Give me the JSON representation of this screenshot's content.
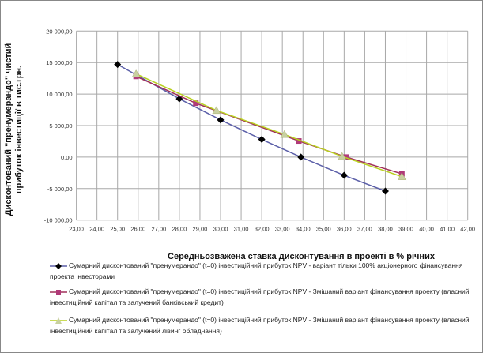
{
  "chart_data": {
    "type": "line",
    "ylabel": "Дисконтований \"пренумерандо\" чистий прибуток інвестиції в тис.грн.",
    "xlabel": "Середньозважена ставка дисконтування в проекті в % річних",
    "xlim": [
      23,
      42
    ],
    "ylim": [
      -10000,
      20000
    ],
    "xticks": [
      "23,00",
      "24,00",
      "25,00",
      "26,00",
      "27,00",
      "28,00",
      "29,00",
      "30,00",
      "31,00",
      "32,00",
      "33,00",
      "34,00",
      "35,00",
      "36,00",
      "37,00",
      "38,00",
      "39,00",
      "40,00",
      "41,00",
      "42,00"
    ],
    "yticks": [
      "-10 000,00",
      "-5 000,00",
      "0,00",
      "5 000,00",
      "10 000,00",
      "15 000,00",
      "20 000,00"
    ],
    "grid": true,
    "legend_position": "bottom",
    "series": [
      {
        "name": "Сумарний дисконтований \"пренумерандо\" (t=0) інвестиційний прибуток NPV  - варіант тільки 100% акціонерного фінансування проекта інвесторами",
        "color": "#5b5fa8",
        "marker": "diamond",
        "marker_color": "#000000",
        "x": [
          25,
          28,
          30,
          32,
          33.9,
          36,
          38
        ],
        "y": [
          14700,
          9250,
          5900,
          2800,
          0,
          -2900,
          -5400
        ]
      },
      {
        "name": "Сумарний дисконтований \"пренумерандо\" (t=0) інвестиційний прибуток NPV  - Змішаний варіант фінансування проекту (власний інвестиційний капітал та залучений банківський кредит)",
        "color": "#a0305a",
        "marker": "square",
        "marker_color": "#b03a78",
        "x": [
          25.9,
          28.8,
          33.8,
          36.1,
          38.8
        ],
        "y": [
          12800,
          8550,
          2550,
          0,
          -2650
        ]
      },
      {
        "name": "Сумарний дисконтований \"пренумерандо\" (t=0) інвестиційний прибуток NPV  - Змішаний варіант фінансування проекту (власний інвестиційний капітал та залучений лізинг обладнання)",
        "color": "#b8d020",
        "marker": "triangle",
        "marker_color": "#c8d0a0",
        "x": [
          25.9,
          29.8,
          33.1,
          35.9,
          38.8
        ],
        "y": [
          13200,
          7400,
          3600,
          100,
          -3100
        ]
      }
    ]
  }
}
